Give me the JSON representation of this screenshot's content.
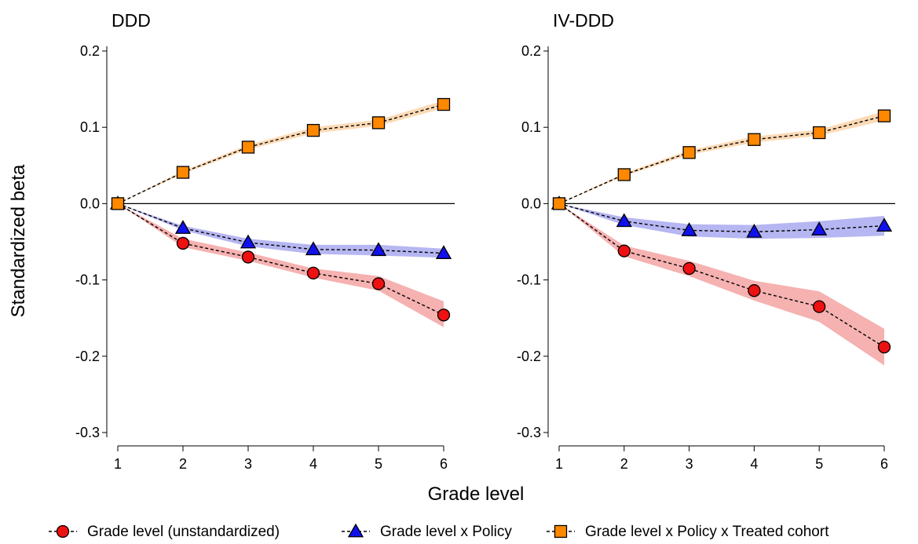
{
  "chart_data": [
    {
      "type": "line",
      "title": "DDD",
      "x": [
        1,
        2,
        3,
        4,
        5,
        6
      ],
      "xlim": [
        1,
        6
      ],
      "ylim": [
        -0.3,
        0.2
      ],
      "yticks": [
        0.2,
        0.1,
        0.0,
        -0.1,
        -0.2,
        -0.3
      ],
      "ytick_labels": [
        "0.2",
        "0.1",
        "0.0",
        "-0.1",
        "-0.2",
        "-0.3"
      ],
      "xtick_labels": [
        "1",
        "2",
        "3",
        "4",
        "5",
        "6"
      ],
      "reference_line": 0,
      "series": [
        {
          "key": "unstd",
          "values": [
            0.0,
            -0.052,
            -0.07,
            -0.091,
            -0.105,
            -0.146
          ],
          "lower": [
            0.0,
            -0.057,
            -0.075,
            -0.097,
            -0.114,
            -0.162
          ],
          "upper": [
            0.0,
            -0.046,
            -0.064,
            -0.085,
            -0.095,
            -0.128
          ]
        },
        {
          "key": "policy",
          "values": [
            0.0,
            -0.032,
            -0.051,
            -0.06,
            -0.061,
            -0.065
          ],
          "lower": [
            0.0,
            -0.035,
            -0.056,
            -0.066,
            -0.068,
            -0.071
          ],
          "upper": [
            0.0,
            -0.029,
            -0.046,
            -0.054,
            -0.054,
            -0.059
          ]
        },
        {
          "key": "treated",
          "values": [
            0.0,
            0.041,
            0.074,
            0.096,
            0.106,
            0.13
          ],
          "lower": [
            0.0,
            0.039,
            0.071,
            0.092,
            0.102,
            0.125
          ],
          "upper": [
            0.0,
            0.043,
            0.077,
            0.1,
            0.11,
            0.135
          ]
        }
      ]
    },
    {
      "type": "line",
      "title": "IV-DDD",
      "x": [
        1,
        2,
        3,
        4,
        5,
        6
      ],
      "xlim": [
        1,
        6
      ],
      "ylim": [
        -0.3,
        0.2
      ],
      "yticks": [
        0.2,
        0.1,
        0.0,
        -0.1,
        -0.2,
        -0.3
      ],
      "ytick_labels": [
        "0.2",
        "0.1",
        "0.0",
        "-0.1",
        "-0.2",
        "-0.3"
      ],
      "xtick_labels": [
        "1",
        "2",
        "3",
        "4",
        "5",
        "6"
      ],
      "reference_line": 0,
      "series": [
        {
          "key": "unstd",
          "values": [
            0.0,
            -0.062,
            -0.085,
            -0.114,
            -0.135,
            -0.188
          ],
          "lower": [
            0.0,
            -0.069,
            -0.095,
            -0.127,
            -0.155,
            -0.212
          ],
          "upper": [
            0.0,
            -0.055,
            -0.075,
            -0.101,
            -0.115,
            -0.164
          ]
        },
        {
          "key": "policy",
          "values": [
            0.0,
            -0.023,
            -0.035,
            -0.037,
            -0.034,
            -0.029
          ],
          "lower": [
            0.0,
            -0.028,
            -0.043,
            -0.046,
            -0.045,
            -0.042
          ],
          "upper": [
            0.0,
            -0.018,
            -0.027,
            -0.028,
            -0.023,
            -0.016
          ]
        },
        {
          "key": "treated",
          "values": [
            0.0,
            0.038,
            0.067,
            0.084,
            0.093,
            0.115
          ],
          "lower": [
            0.0,
            0.036,
            0.064,
            0.08,
            0.089,
            0.109
          ],
          "upper": [
            0.0,
            0.04,
            0.07,
            0.088,
            0.097,
            0.121
          ]
        }
      ]
    }
  ],
  "axes": {
    "ylabel": "Standardized beta",
    "xlabel": "Grade level"
  },
  "legend": {
    "placement": "bottom",
    "entries": [
      {
        "label": "Grade level (unstandardized)",
        "marker": "circle",
        "color": "#ee1111",
        "band_color": "#f4a3a3"
      },
      {
        "label": "Grade level x Policy",
        "marker": "triangle",
        "color": "#1111ee",
        "band_color": "#a9a9f0"
      },
      {
        "label": "Grade level x Policy x Treated cohort",
        "marker": "square",
        "color": "#ff8800",
        "band_color": "#fcd3a8"
      }
    ]
  }
}
